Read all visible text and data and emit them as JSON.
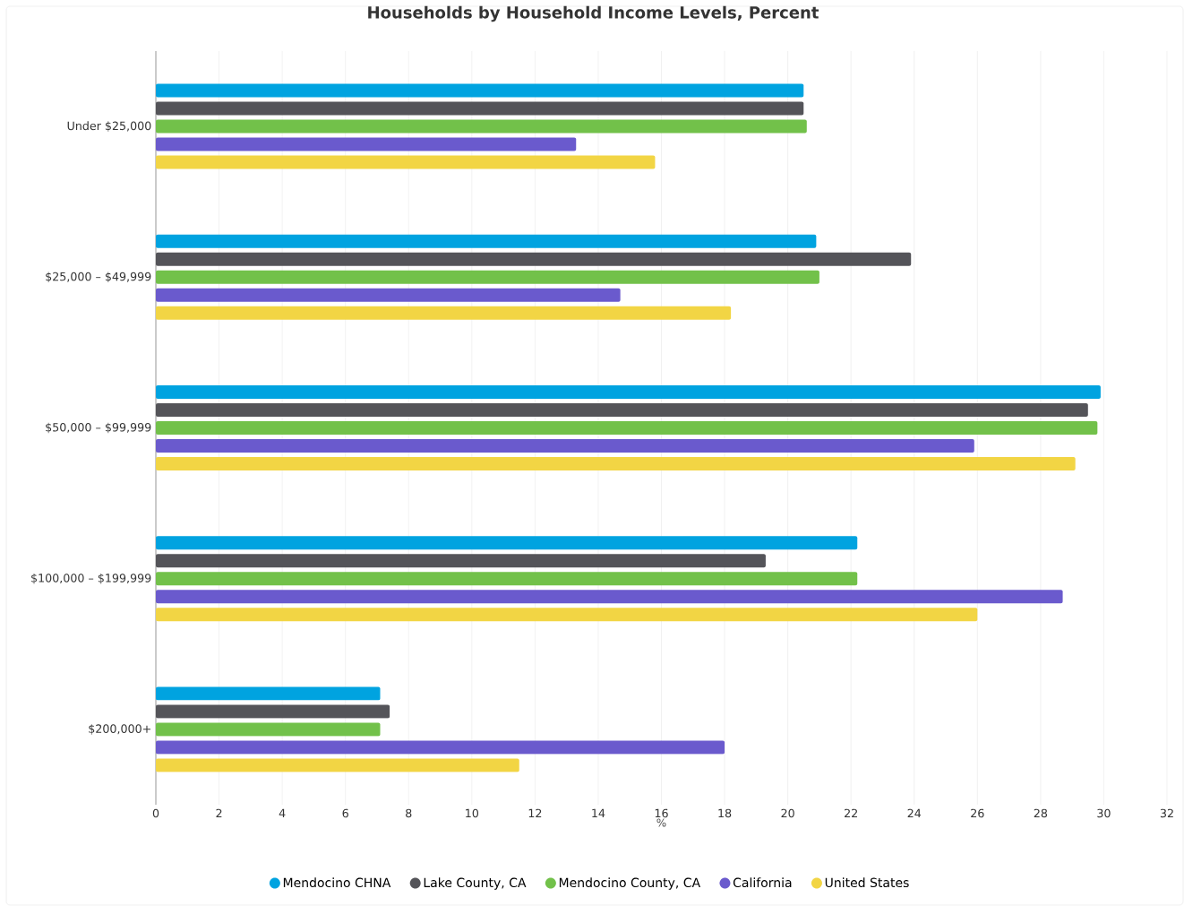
{
  "chart_data": {
    "type": "bar",
    "orientation": "horizontal",
    "title": "Households by Household Income Levels, Percent",
    "xlabel": "%",
    "categories": [
      "Under $25,000",
      "$25,000 – $49,999",
      "$50,000 – $99,999",
      "$100,000 – $199,999",
      "$200,000+"
    ],
    "series": [
      {
        "name": "Mendocino CHNA",
        "color": "#00a3e0",
        "values": [
          20.5,
          20.9,
          29.9,
          22.2,
          7.1
        ]
      },
      {
        "name": "Lake County, CA",
        "color": "#545459",
        "values": [
          20.5,
          23.9,
          29.5,
          19.3,
          7.4
        ]
      },
      {
        "name": "Mendocino County, CA",
        "color": "#72c14a",
        "values": [
          20.6,
          21.0,
          29.8,
          22.2,
          7.1
        ]
      },
      {
        "name": "California",
        "color": "#6a5acd",
        "values": [
          13.3,
          14.7,
          25.9,
          28.7,
          18.0
        ]
      },
      {
        "name": "United States",
        "color": "#f2d544",
        "values": [
          15.8,
          18.2,
          29.1,
          26.0,
          11.5
        ]
      }
    ],
    "xlim": [
      0,
      32
    ],
    "xticks": [
      0,
      2,
      4,
      6,
      8,
      10,
      12,
      14,
      16,
      18,
      20,
      22,
      24,
      26,
      28,
      30,
      32
    ],
    "grid": "x",
    "legend": "bottom"
  }
}
